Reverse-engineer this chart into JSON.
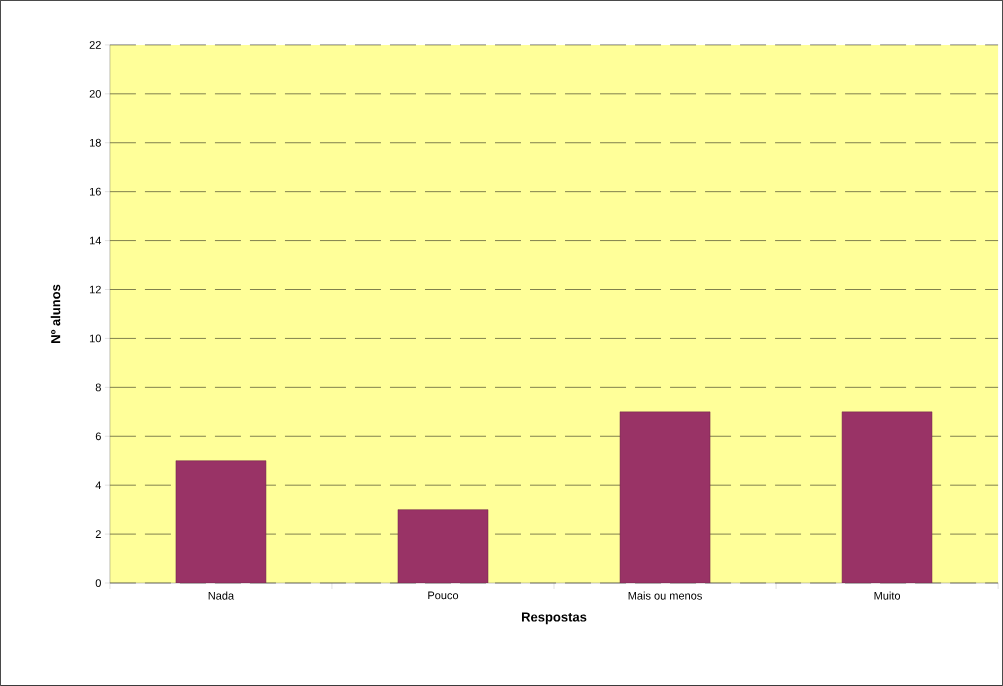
{
  "chart_data": {
    "type": "bar",
    "xlabel": "Respostas",
    "ylabel": "Nº alunos",
    "categories": [
      "Nada",
      "Pouco",
      "Mais ou menos",
      "Muito"
    ],
    "values": [
      5,
      3,
      7,
      7
    ],
    "color": "#993366",
    "ylim": [
      0,
      22
    ],
    "yticks": [
      0,
      2,
      4,
      6,
      8,
      10,
      12,
      14,
      16,
      18,
      20,
      22
    ],
    "grid": "y"
  }
}
